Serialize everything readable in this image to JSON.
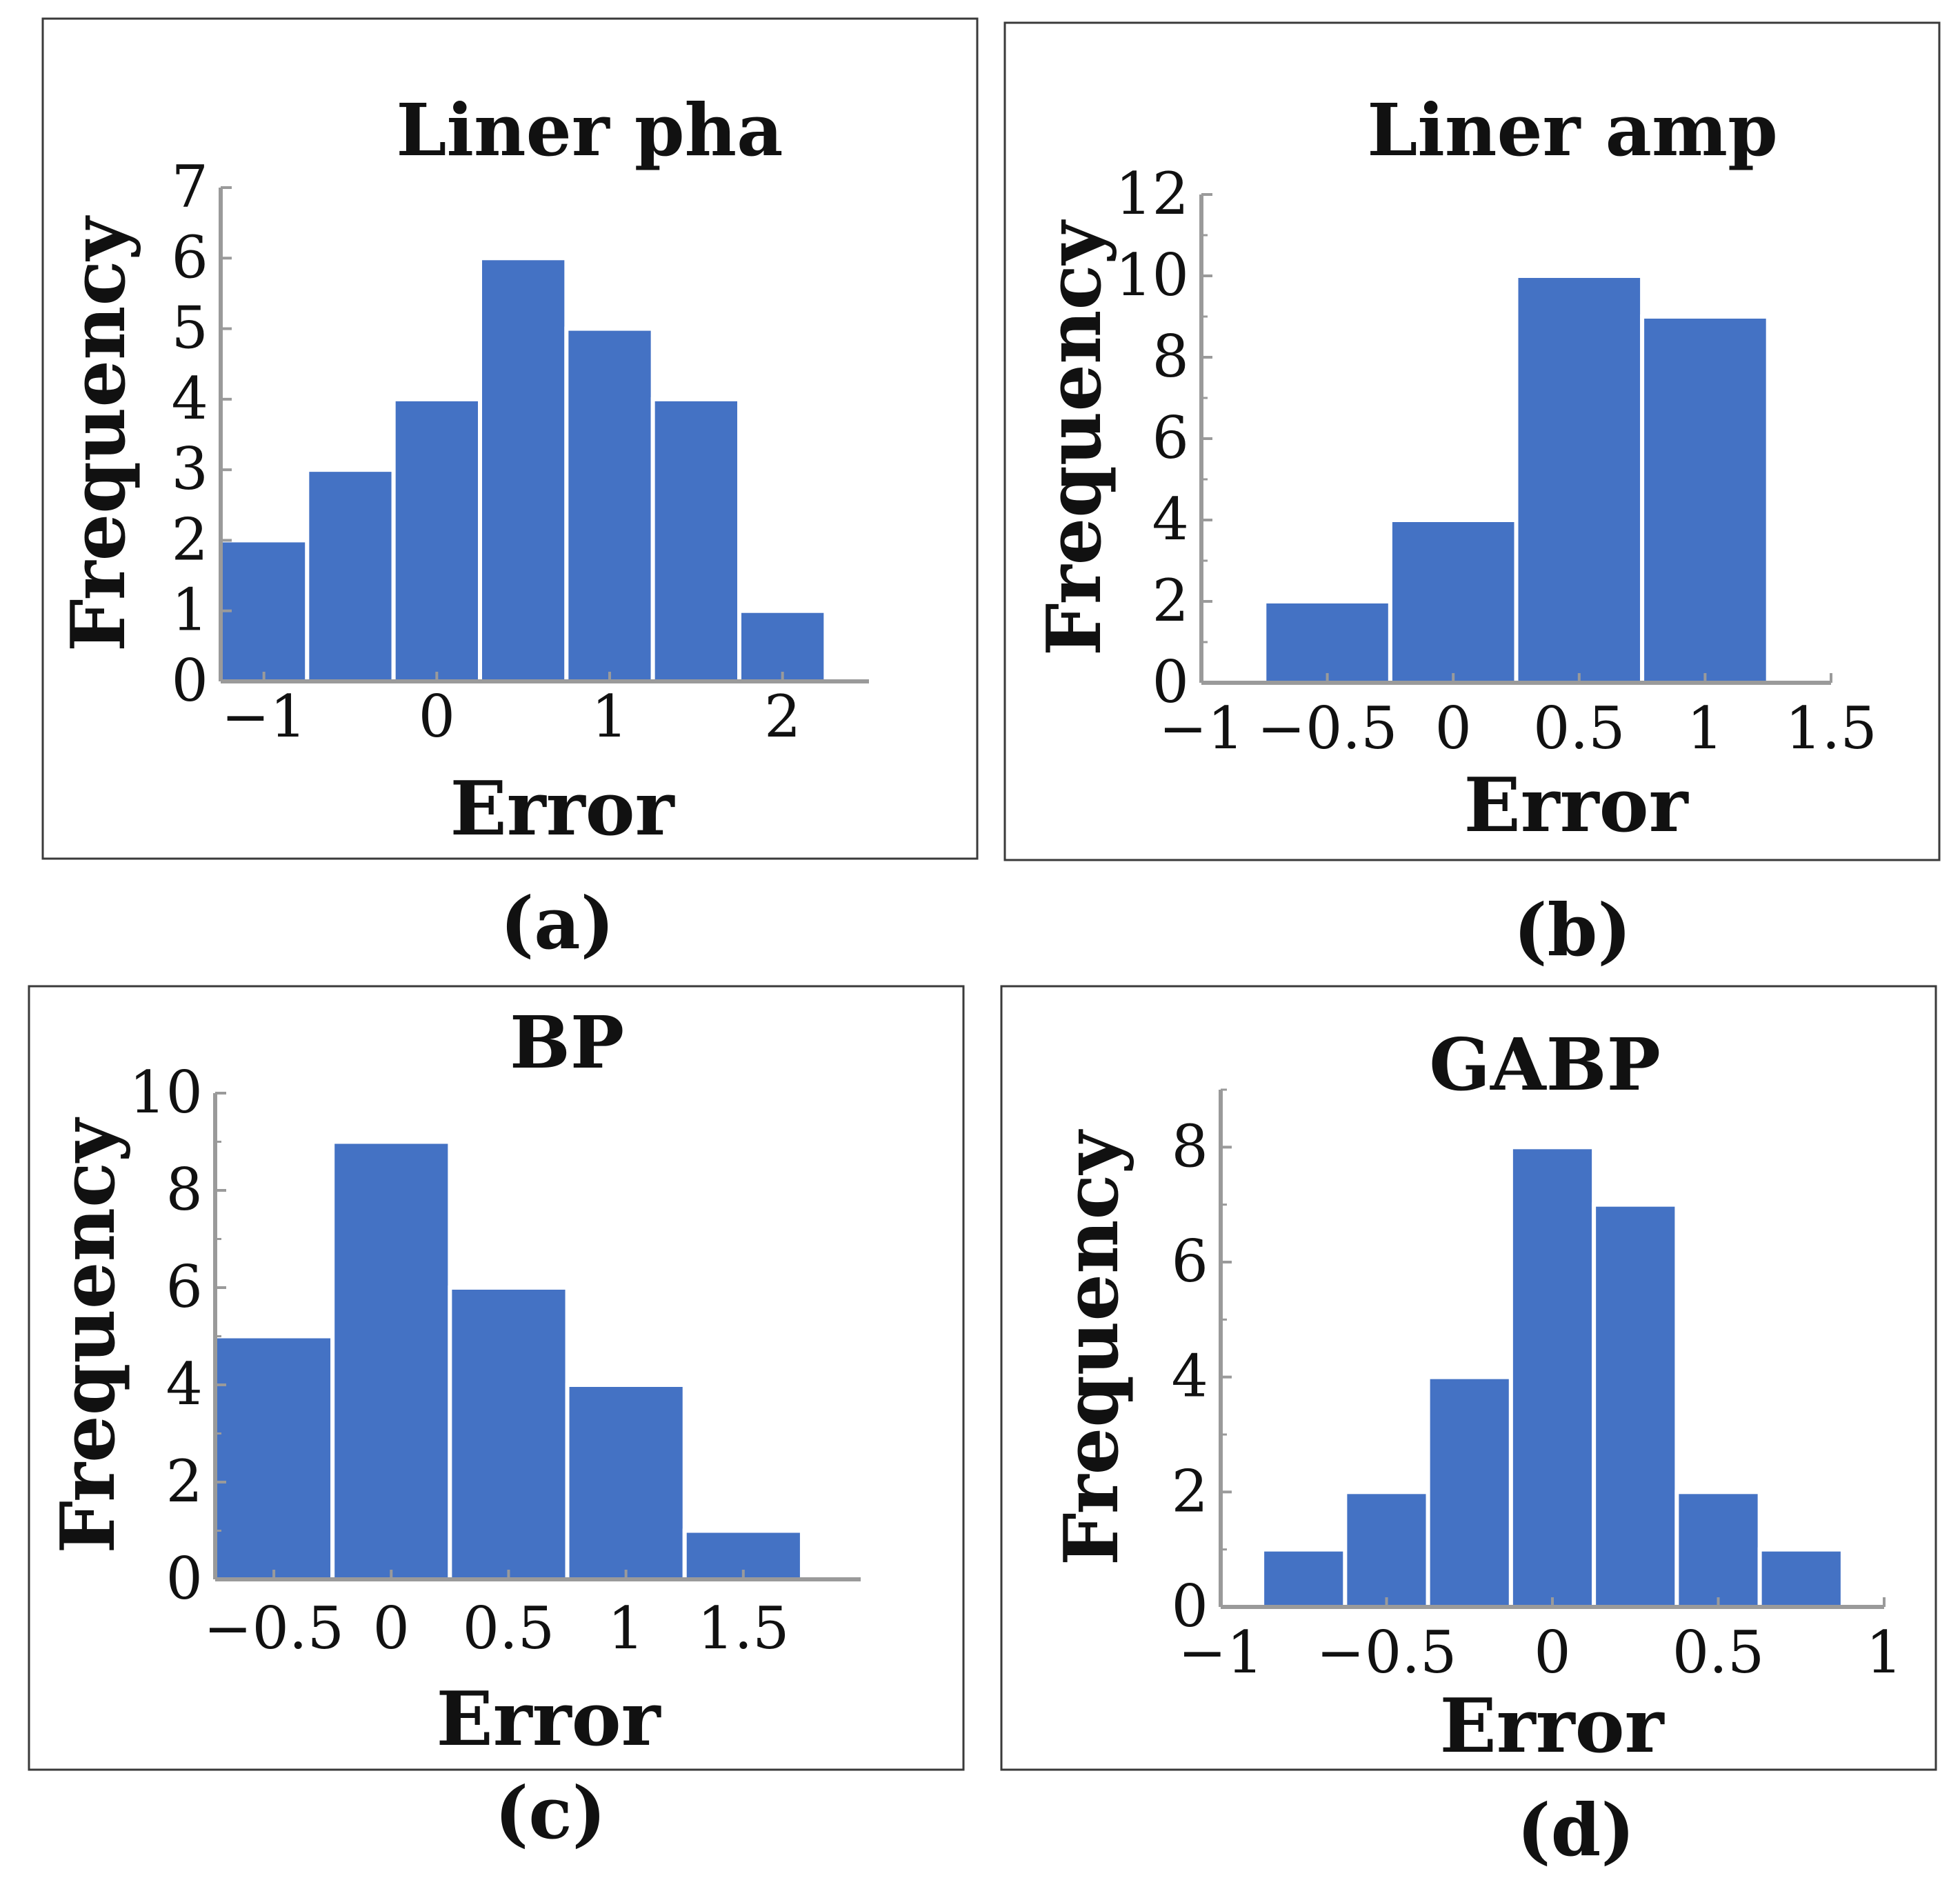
{
  "figure": {
    "bar_color": "#4472c4",
    "frame_color": "#3a3a3a",
    "axis_color": "#9a9a9a"
  },
  "chart_data": [
    {
      "type": "bar",
      "caption": "(a)",
      "title": "Liner pha",
      "xlabel": "Error",
      "ylabel": "Frequency",
      "xlim": [
        -1.25,
        2.5
      ],
      "ylim": [
        0,
        7
      ],
      "xticks": [
        -1,
        0,
        1,
        2
      ],
      "xtick_labels": [
        "−1",
        "0",
        "1",
        "2"
      ],
      "yticks": [
        0,
        1,
        2,
        3,
        4,
        5,
        6,
        7
      ],
      "ytick_labels": [
        "0",
        "1",
        "2",
        "3",
        "4",
        "5",
        "6",
        "7"
      ],
      "yminor": [],
      "bin_edges": [
        -1.25,
        -0.75,
        -0.25,
        0.25,
        0.75,
        1.25,
        1.75,
        2.25
      ],
      "values": [
        2,
        3,
        4,
        6,
        5,
        4,
        1
      ]
    },
    {
      "type": "bar",
      "caption": "(b)",
      "title": "Liner amp",
      "xlabel": "Error",
      "ylabel": "Frequency",
      "xlim": [
        -1,
        1.5
      ],
      "ylim": [
        0,
        12
      ],
      "xticks": [
        -1,
        -0.5,
        0,
        0.5,
        1,
        1.5
      ],
      "xtick_labels": [
        "−1",
        "−0.5",
        "0",
        "0.5",
        "1",
        "1.5"
      ],
      "yticks": [
        0,
        2,
        4,
        6,
        8,
        10,
        12
      ],
      "ytick_labels": [
        "0",
        "2",
        "4",
        "6",
        "8",
        "10",
        "12"
      ],
      "yminor": [
        1,
        3,
        5,
        7,
        9,
        11
      ],
      "bin_edges": [
        -0.75,
        -0.25,
        0.25,
        0.75,
        1.25
      ],
      "values": [
        2,
        4,
        10,
        9
      ]
    },
    {
      "type": "bar",
      "caption": "(c)",
      "title": "BP",
      "xlabel": "Error",
      "ylabel": "Frequency",
      "xlim": [
        -0.75,
        2.0
      ],
      "ylim": [
        0,
        10
      ],
      "xticks": [
        -0.5,
        0,
        0.5,
        1,
        1.5
      ],
      "xtick_labels": [
        "−0.5",
        "0",
        "0.5",
        "1",
        "1.5"
      ],
      "yticks": [
        0,
        2,
        4,
        6,
        8,
        10
      ],
      "ytick_labels": [
        "0",
        "2",
        "4",
        "6",
        "8",
        "10"
      ],
      "yminor": [
        1,
        3,
        5,
        7,
        9
      ],
      "bin_edges": [
        -0.75,
        -0.25,
        0.25,
        0.75,
        1.25,
        1.75
      ],
      "values": [
        5,
        9,
        6,
        4,
        1
      ]
    },
    {
      "type": "bar",
      "caption": "(d)",
      "title": "GABP",
      "xlabel": "Error",
      "ylabel": "Frequency",
      "xlim": [
        -1,
        1
      ],
      "ylim": [
        0,
        9
      ],
      "xticks": [
        -1,
        -0.5,
        0,
        0.5,
        1
      ],
      "xtick_labels": [
        "−1",
        "−0.5",
        "0",
        "0.5",
        "1"
      ],
      "yticks": [
        0,
        2,
        4,
        6,
        8
      ],
      "ytick_labels": [
        "0",
        "2",
        "4",
        "6",
        "8"
      ],
      "yminor": [
        1,
        3,
        5,
        7,
        9
      ],
      "bin_edges": [
        -0.875,
        -0.625,
        -0.375,
        -0.125,
        0.125,
        0.375,
        0.625,
        0.875
      ],
      "values": [
        1,
        2,
        4,
        8,
        7,
        2,
        1
      ]
    }
  ]
}
